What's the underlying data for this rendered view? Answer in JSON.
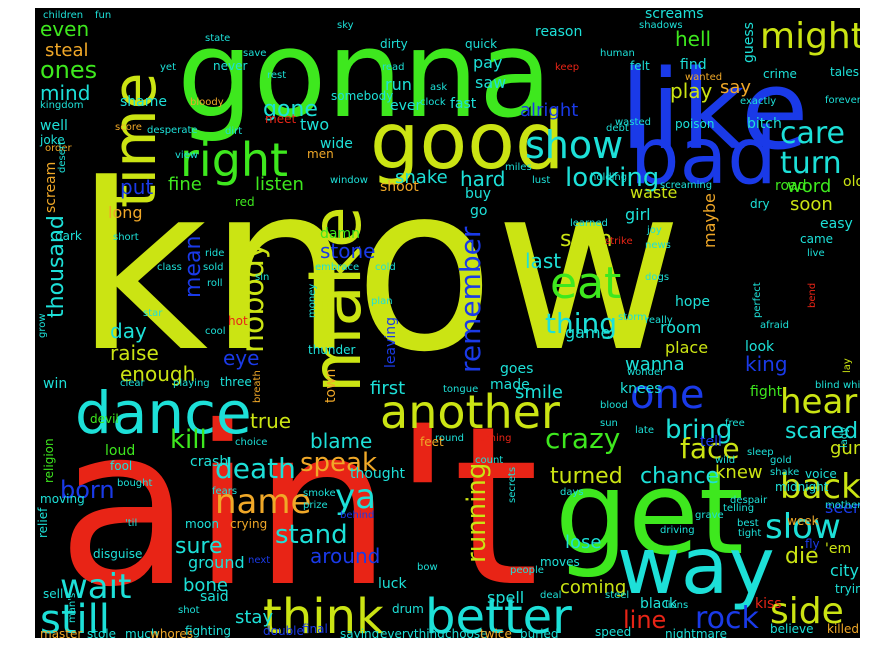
{
  "colors": {
    "background": "#000000",
    "yellow_green": "#cbe413",
    "green": "#3ee81e",
    "red": "#e82416",
    "blue": "#1a3ae8",
    "cyan": "#1de0d8",
    "orange": "#f0a828",
    "lime": "#8ee81a"
  },
  "words": [
    {
      "text": "know",
      "weight": 100
    },
    {
      "text": "ain't",
      "weight": 95
    },
    {
      "text": "gonna",
      "weight": 60
    },
    {
      "text": "like",
      "weight": 58
    },
    {
      "text": "get",
      "weight": 55
    },
    {
      "text": "good",
      "weight": 45
    },
    {
      "text": "bad",
      "weight": 44
    },
    {
      "text": "way",
      "weight": 40
    },
    {
      "text": "make",
      "weight": 38
    },
    {
      "text": "time",
      "weight": 37
    },
    {
      "text": "dance",
      "weight": 33
    },
    {
      "text": "another",
      "weight": 32
    },
    {
      "text": "think",
      "weight": 31
    },
    {
      "text": "better",
      "weight": 31
    },
    {
      "text": "still",
      "weight": 30
    },
    {
      "text": "right",
      "weight": 28
    },
    {
      "text": "might",
      "weight": 27
    },
    {
      "text": "care",
      "weight": 25
    },
    {
      "text": "turn",
      "weight": 25
    },
    {
      "text": "show",
      "weight": 26
    },
    {
      "text": "eat",
      "weight": 26
    },
    {
      "text": "one",
      "weight": 27
    },
    {
      "text": "hear",
      "weight": 25
    },
    {
      "text": "back",
      "weight": 24
    },
    {
      "text": "slow",
      "weight": 24
    },
    {
      "text": "side",
      "weight": 25
    },
    {
      "text": "nobody",
      "weight": 22
    },
    {
      "text": "remember",
      "weight": 22
    },
    {
      "text": "thing",
      "weight": 21
    },
    {
      "text": "name",
      "weight": 22
    },
    {
      "text": "ya",
      "weight": 22
    },
    {
      "text": "running",
      "weight": 20
    },
    {
      "text": "rock",
      "weight": 20
    },
    {
      "text": "face",
      "weight": 20
    },
    {
      "text": "crazy",
      "weight": 19
    },
    {
      "text": "death",
      "weight": 19
    },
    {
      "text": "kill",
      "weight": 18
    },
    {
      "text": "stand",
      "weight": 18
    },
    {
      "text": "speak",
      "weight": 18
    },
    {
      "text": "wait",
      "weight": 20
    },
    {
      "text": "gone",
      "weight": 16
    },
    {
      "text": "hard",
      "weight": 15
    },
    {
      "text": "looking",
      "weight": 16
    },
    {
      "text": "seen",
      "weight": 15
    },
    {
      "text": "last",
      "weight": 14
    },
    {
      "text": "bring",
      "weight": 16
    },
    {
      "text": "scared",
      "weight": 15
    },
    {
      "text": "knew",
      "weight": 13
    },
    {
      "text": "chance",
      "weight": 14
    },
    {
      "text": "turned",
      "weight": 14
    },
    {
      "text": "die",
      "weight": 15
    },
    {
      "text": "sure",
      "weight": 15
    },
    {
      "text": "born",
      "weight": 15
    },
    {
      "text": "around",
      "weight": 14
    },
    {
      "text": "coming",
      "weight": 13
    },
    {
      "text": "line",
      "weight": 14
    },
    {
      "text": "put",
      "weight": 14
    },
    {
      "text": "fine",
      "weight": 13
    },
    {
      "text": "listen",
      "weight": 13
    },
    {
      "text": "snake",
      "weight": 13
    },
    {
      "text": "stone",
      "weight": 13
    },
    {
      "text": "mean",
      "weight": 14
    },
    {
      "text": "day",
      "weight": 13
    },
    {
      "text": "raise",
      "weight": 13
    },
    {
      "text": "enough",
      "weight": 13
    },
    {
      "text": "eye",
      "weight": 13
    },
    {
      "text": "hell",
      "weight": 13
    },
    {
      "text": "play",
      "weight": 13
    },
    {
      "text": "say",
      "weight": 13
    },
    {
      "text": "even",
      "weight": 14
    },
    {
      "text": "ones",
      "weight": 16
    },
    {
      "text": "mind",
      "weight": 14
    },
    {
      "text": "steal",
      "weight": 13
    },
    {
      "text": "word",
      "weight": 13
    },
    {
      "text": "soon",
      "weight": 13
    },
    {
      "text": "first",
      "weight": 13
    },
    {
      "text": "smile",
      "weight": 13
    },
    {
      "text": "true",
      "weight": 13
    },
    {
      "text": "blame",
      "weight": 13
    },
    {
      "text": "thousand",
      "weight": 14
    },
    {
      "text": "remember",
      "weight": 0
    }
  ],
  "visible_words": [
    "know",
    "ain't",
    "gonna",
    "like",
    "get",
    "good",
    "bad",
    "way",
    "make",
    "time",
    "dance",
    "another",
    "think",
    "better",
    "still",
    "right",
    "might",
    "care",
    "turn",
    "show",
    "eat",
    "one",
    "hear",
    "back",
    "slow",
    "side",
    "nobody",
    "remember",
    "thing",
    "name",
    "ya",
    "running",
    "rock",
    "face",
    "crazy",
    "death",
    "kill",
    "stand",
    "speak",
    "wait",
    "gone",
    "hard",
    "looking",
    "seen",
    "last",
    "bring",
    "scared",
    "knew",
    "chance",
    "turned",
    "die",
    "sure",
    "born",
    "around",
    "coming",
    "line",
    "put",
    "fine",
    "listen",
    "snake",
    "stone",
    "mean",
    "day",
    "raise",
    "enough",
    "eye",
    "hell",
    "play",
    "say",
    "even",
    "ones",
    "mind",
    "steal",
    "word",
    "soon",
    "first",
    "smile",
    "true",
    "blame",
    "thousand",
    "alright",
    "two",
    "shoot",
    "waste",
    "maybe",
    "girl",
    "go",
    "buy",
    "damn",
    "thought",
    "game",
    "room",
    "place",
    "hope",
    "look",
    "king",
    "wanna",
    "goes",
    "lose",
    "knees",
    "fight",
    "gun",
    "tell",
    "seems",
    "city",
    "stay",
    "said",
    "bone",
    "ground",
    "luck",
    "spell",
    "kiss",
    "black",
    "fire",
    "hit",
    "cut",
    "tears",
    "crash",
    "loud",
    "town",
    "leaving",
    "leaving",
    "made",
    "moves",
    "'em",
    "pay",
    "saw",
    "run",
    "fast",
    "ever",
    "find",
    "well",
    "joke",
    "shame",
    "long",
    "red",
    "hot",
    "wide",
    "men",
    "fly",
    "easy",
    "old",
    "came",
    "road",
    "dry",
    "week",
    "midnight",
    "voice",
    "believe",
    "killed",
    "trying",
    "stole",
    "much",
    "fighting",
    "drum",
    "saying",
    "everything",
    "buried",
    "speed",
    "nightmare",
    "choose",
    "twice",
    "final",
    "double",
    "whores",
    "master",
    "sell",
    "moving",
    "relief",
    "disguise",
    "devil",
    "religion",
    "win",
    "dark",
    "short",
    "class",
    "ride",
    "sold",
    "roll",
    "sin",
    "star",
    "cool",
    "storm",
    "dogs",
    "joy",
    "news",
    "strike",
    "learned",
    "window",
    "holding",
    "lust",
    "miles",
    "debt",
    "poison",
    "bitch",
    "wasted",
    "screaming",
    "crime",
    "tales",
    "guess",
    "forever",
    "exactly",
    "wanted",
    "felt",
    "human",
    "shadows",
    "screams",
    "reason",
    "quick",
    "dirty",
    "read",
    "keep",
    "ask",
    "clock",
    "somebody",
    "bloody",
    "kingdom",
    "never",
    "yet",
    "rest",
    "save",
    "state",
    "sky",
    "children",
    "fun",
    "desperate",
    "score",
    "dirt",
    "meet",
    "view",
    "order",
    "desert",
    "scream",
    "embrace",
    "cold",
    "plan",
    "money",
    "thunder",
    "afraid",
    "perfect",
    "bend",
    "live",
    "grow",
    "hot",
    "really",
    "wonder",
    "tongue",
    "breath",
    "playing",
    "three",
    "clear",
    "choice",
    "fears",
    "fool",
    "bought",
    "smoke",
    "prize",
    "behind",
    "crying",
    "moon",
    "'til",
    "next",
    "bow",
    "secrets",
    "people",
    "deal",
    "steel",
    "lions",
    "grave",
    "driving",
    "best",
    "tight",
    "despair",
    "mother",
    "telling",
    "blind",
    "white",
    "lady",
    "lay",
    "man's",
    "shot",
    "late",
    "blood",
    "round",
    "burning",
    "feet",
    "count",
    "days",
    "sun",
    "free",
    "wild",
    "gold",
    "shake",
    "sleep"
  ]
}
